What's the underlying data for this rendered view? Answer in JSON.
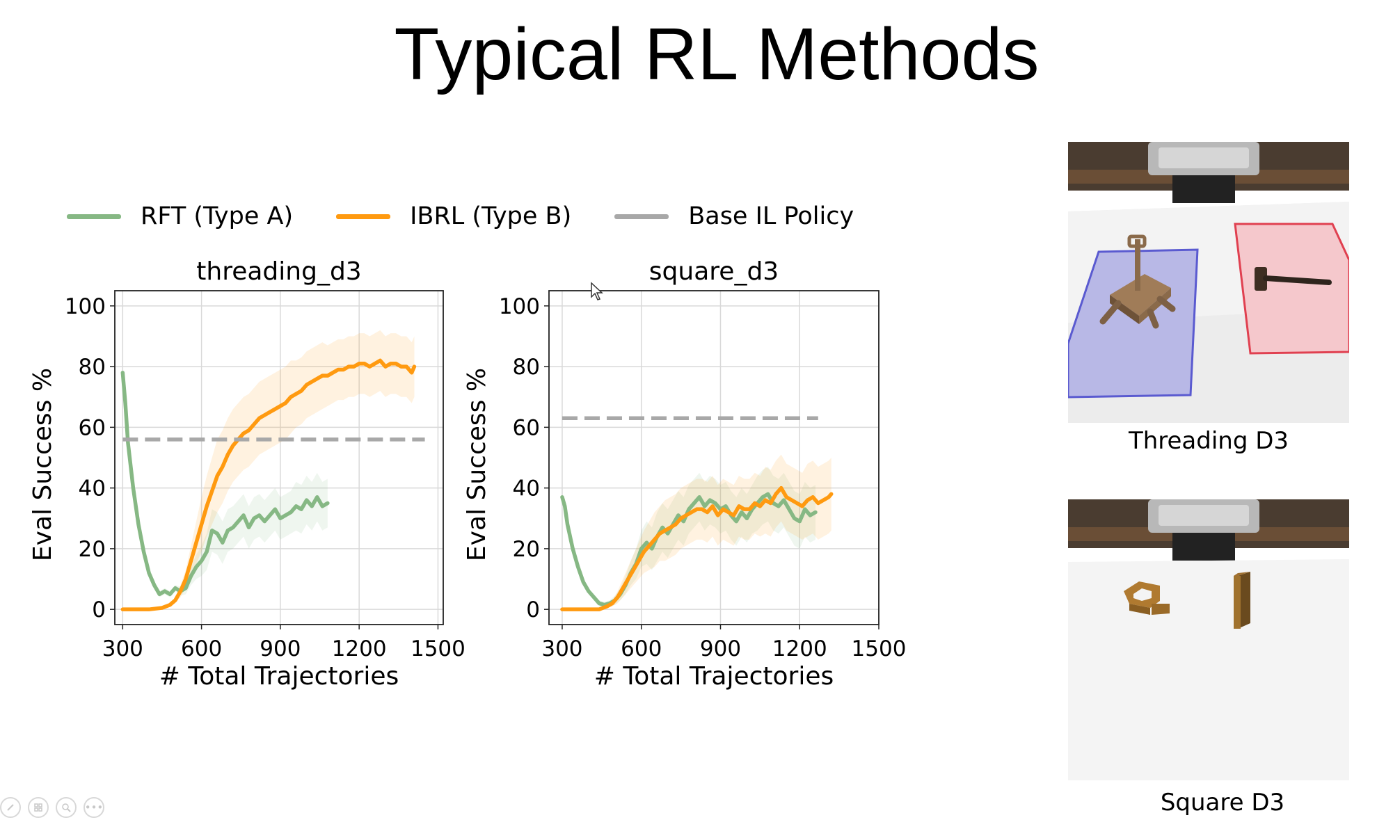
{
  "slide": {
    "title": "Typical RL Methods"
  },
  "legend": {
    "items": [
      {
        "label": "RFT (Type A)",
        "color": "#86b884"
      },
      {
        "label": "IBRL (Type B)",
        "color": "#ff9a10"
      },
      {
        "label": "Base IL Policy",
        "color": "#a8a8a8"
      }
    ]
  },
  "chart_data": [
    {
      "type": "line",
      "title": "threading_d3",
      "xlabel": "# Total Trajectories",
      "ylabel": "Eval Success %",
      "xlim": [
        270,
        1520
      ],
      "ylim": [
        -5,
        105
      ],
      "xticks": [
        300,
        600,
        900,
        1200,
        1500
      ],
      "yticks": [
        0,
        20,
        40,
        60,
        80,
        100
      ],
      "grid": true,
      "series": [
        {
          "name": "RFT (Type A)",
          "color": "#86b884",
          "x": [
            300,
            310,
            320,
            340,
            360,
            380,
            400,
            420,
            440,
            460,
            480,
            500,
            520,
            540,
            560,
            580,
            600,
            620,
            640,
            660,
            680,
            700,
            720,
            740,
            760,
            780,
            800,
            820,
            840,
            860,
            880,
            900,
            920,
            940,
            960,
            980,
            1000,
            1020,
            1040,
            1060,
            1080
          ],
          "y": [
            78,
            68,
            55,
            40,
            28,
            19,
            12,
            8,
            5,
            6,
            5,
            7,
            6,
            7,
            11,
            14,
            16,
            19,
            26,
            25,
            22,
            26,
            27,
            29,
            31,
            27,
            30,
            31,
            29,
            31,
            33,
            30,
            31,
            32,
            34,
            33,
            36,
            34,
            37,
            34,
            35
          ],
          "band": [
            0,
            0,
            0,
            0,
            0,
            0,
            0,
            0,
            1,
            1,
            1,
            1,
            1.5,
            2,
            3,
            4,
            5,
            6,
            7,
            7,
            7,
            7,
            7,
            7,
            7,
            7,
            7,
            7,
            7,
            7,
            7,
            7,
            7,
            7,
            8,
            8,
            8,
            8,
            8,
            8,
            8
          ]
        },
        {
          "name": "IBRL (Type B)",
          "color": "#ff9a10",
          "x": [
            300,
            350,
            400,
            450,
            480,
            500,
            520,
            540,
            560,
            580,
            600,
            620,
            640,
            660,
            680,
            700,
            720,
            740,
            760,
            780,
            800,
            820,
            840,
            860,
            880,
            900,
            920,
            940,
            960,
            980,
            1000,
            1020,
            1040,
            1060,
            1080,
            1100,
            1120,
            1140,
            1160,
            1180,
            1200,
            1220,
            1240,
            1260,
            1280,
            1300,
            1320,
            1340,
            1360,
            1380,
            1400,
            1410
          ],
          "y": [
            0,
            0,
            0,
            0.5,
            1.5,
            3,
            6,
            10,
            16,
            22,
            28,
            34,
            39,
            44,
            47,
            51,
            54,
            56,
            58,
            59,
            61,
            63,
            64,
            65,
            66,
            67,
            68,
            70,
            71,
            72,
            74,
            75,
            76,
            77,
            77,
            78,
            79,
            79,
            80,
            80,
            81,
            81,
            80,
            81,
            82,
            80,
            81,
            81,
            80,
            80,
            78,
            80
          ],
          "band": [
            0,
            0,
            0,
            0,
            0.5,
            1,
            2,
            3,
            5,
            7,
            9,
            10,
            11,
            12,
            12,
            12,
            12,
            12,
            12,
            12,
            12,
            12,
            12,
            12,
            12,
            12,
            12,
            12,
            11,
            11,
            11,
            11,
            11,
            11,
            10,
            10,
            10,
            10,
            10,
            10,
            10,
            10,
            10,
            10,
            10,
            10,
            10,
            10,
            10,
            10,
            10,
            10
          ]
        },
        {
          "name": "Base IL Policy",
          "color": "#a8a8a8",
          "dashed": true,
          "x": [
            300,
            1450
          ],
          "y": [
            56,
            56
          ]
        }
      ]
    },
    {
      "type": "line",
      "title": "square_d3",
      "xlabel": "# Total Trajectories",
      "ylabel": "Eval Success %",
      "xlim": [
        250,
        1500
      ],
      "ylim": [
        -5,
        105
      ],
      "xticks": [
        300,
        600,
        900,
        1200,
        1500
      ],
      "yticks": [
        0,
        20,
        40,
        60,
        80,
        100
      ],
      "grid": true,
      "series": [
        {
          "name": "RFT (Type A)",
          "color": "#86b884",
          "x": [
            300,
            310,
            320,
            340,
            360,
            380,
            400,
            420,
            440,
            460,
            480,
            500,
            520,
            540,
            560,
            580,
            600,
            620,
            640,
            660,
            680,
            700,
            720,
            740,
            760,
            780,
            800,
            820,
            840,
            860,
            880,
            900,
            920,
            940,
            960,
            980,
            1000,
            1020,
            1040,
            1060,
            1080,
            1100,
            1120,
            1140,
            1160,
            1180,
            1200,
            1220,
            1240,
            1260
          ],
          "y": [
            37,
            34,
            28,
            20,
            14,
            9,
            6,
            4,
            2,
            1.5,
            2,
            3,
            5,
            8,
            12,
            15,
            20,
            22,
            20,
            24,
            27,
            25,
            28,
            31,
            29,
            33,
            35,
            37,
            34,
            36,
            35,
            33,
            34,
            31,
            29,
            32,
            30,
            33,
            35,
            37,
            38,
            35,
            34,
            36,
            33,
            30,
            29,
            33,
            31,
            32
          ],
          "band": [
            0,
            0,
            0,
            0,
            0,
            0,
            0,
            0,
            1,
            1,
            1,
            1.5,
            2,
            3,
            4,
            5,
            6,
            7,
            7,
            8,
            8,
            8,
            8,
            8,
            8,
            8,
            8,
            8,
            8,
            8,
            8,
            8,
            8,
            8,
            8,
            8,
            8,
            8,
            9,
            9,
            9,
            9,
            9,
            9,
            9,
            9,
            9,
            9,
            9,
            9
          ]
        },
        {
          "name": "IBRL (Type B)",
          "color": "#ff9a10",
          "x": [
            300,
            350,
            400,
            440,
            470,
            490,
            510,
            530,
            550,
            570,
            590,
            610,
            630,
            650,
            670,
            690,
            710,
            730,
            750,
            770,
            790,
            810,
            830,
            850,
            870,
            890,
            910,
            930,
            950,
            970,
            990,
            1010,
            1030,
            1050,
            1070,
            1090,
            1110,
            1130,
            1150,
            1170,
            1190,
            1210,
            1230,
            1250,
            1270,
            1290,
            1310,
            1320
          ],
          "y": [
            0,
            0,
            0,
            0,
            1,
            2,
            4,
            7,
            10,
            13,
            16,
            19,
            21,
            23,
            25,
            26,
            27,
            28,
            30,
            31,
            32,
            33,
            33,
            32,
            34,
            31,
            33,
            32,
            31,
            34,
            33,
            33,
            35,
            34,
            36,
            35,
            38,
            40,
            37,
            36,
            35,
            34,
            36,
            37,
            35,
            36,
            37,
            38
          ],
          "band": [
            0,
            0,
            0,
            0,
            0.5,
            1,
            2,
            3,
            4,
            5,
            6,
            7,
            8,
            9,
            9,
            10,
            10,
            10,
            10,
            10,
            10,
            10,
            10,
            10,
            10,
            10,
            10,
            10,
            10,
            10,
            10,
            10,
            10,
            10,
            11,
            11,
            11,
            11,
            11,
            11,
            11,
            11,
            12,
            12,
            12,
            12,
            12,
            12
          ]
        },
        {
          "name": "Base IL Policy",
          "color": "#a8a8a8",
          "dashed": true,
          "x": [
            300,
            1270
          ],
          "y": [
            63,
            63
          ]
        }
      ]
    }
  ],
  "sim_panels": [
    {
      "caption": "Threading D3"
    },
    {
      "caption": "Square D3"
    }
  ],
  "toolbar": {
    "icons": [
      "pen-icon",
      "slides-icon",
      "zoom-icon",
      "more-icon"
    ],
    "more_label": "•••"
  }
}
